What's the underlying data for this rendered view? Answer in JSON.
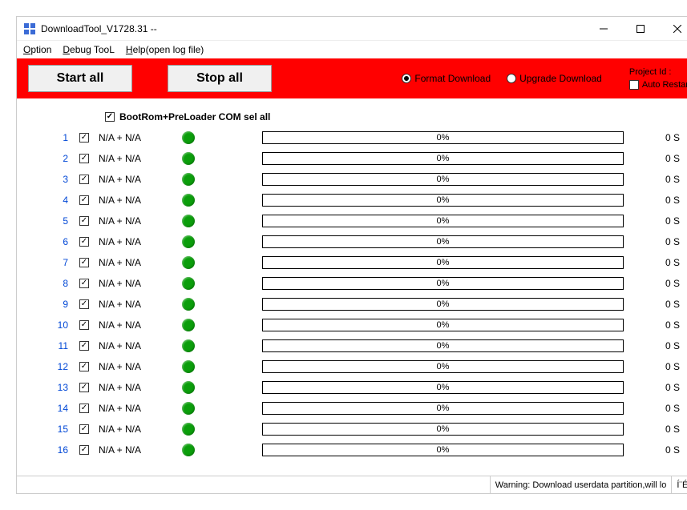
{
  "window": {
    "title": "DownloadTool_V1728.31 --"
  },
  "menubar": {
    "option": "Option",
    "debug": "Debug TooL",
    "help": "Help(open log file)"
  },
  "toolbar": {
    "start_all": "Start all",
    "stop_all": "Stop all",
    "format_download": "Format Download",
    "upgrade_download": "Upgrade Download",
    "format_selected": true,
    "project_id_label": "Project Id :",
    "auto_restart_label": "Auto Restart",
    "auto_restart_checked": false,
    "bg_color": "#ff0000"
  },
  "select_all": {
    "label": "BootRom+PreLoader COM sel all",
    "checked": true
  },
  "row_defaults": {
    "label": "N/A + N/A",
    "progress_text": "0%",
    "time_text": "0 S",
    "status_color": "#0b9e0b",
    "checked": true
  },
  "rows": [
    {
      "idx": "1"
    },
    {
      "idx": "2"
    },
    {
      "idx": "3"
    },
    {
      "idx": "4"
    },
    {
      "idx": "5"
    },
    {
      "idx": "6"
    },
    {
      "idx": "7"
    },
    {
      "idx": "8"
    },
    {
      "idx": "9"
    },
    {
      "idx": "10"
    },
    {
      "idx": "11"
    },
    {
      "idx": "12"
    },
    {
      "idx": "13"
    },
    {
      "idx": "14"
    },
    {
      "idx": "15"
    },
    {
      "idx": "16"
    }
  ],
  "statusbar": {
    "warning": "Warning: Download userdata partition,will lo",
    "tail": "Í¨ÉÙ¨"
  },
  "colors": {
    "idx_color": "#0047d6",
    "progress_border": "#000000"
  }
}
